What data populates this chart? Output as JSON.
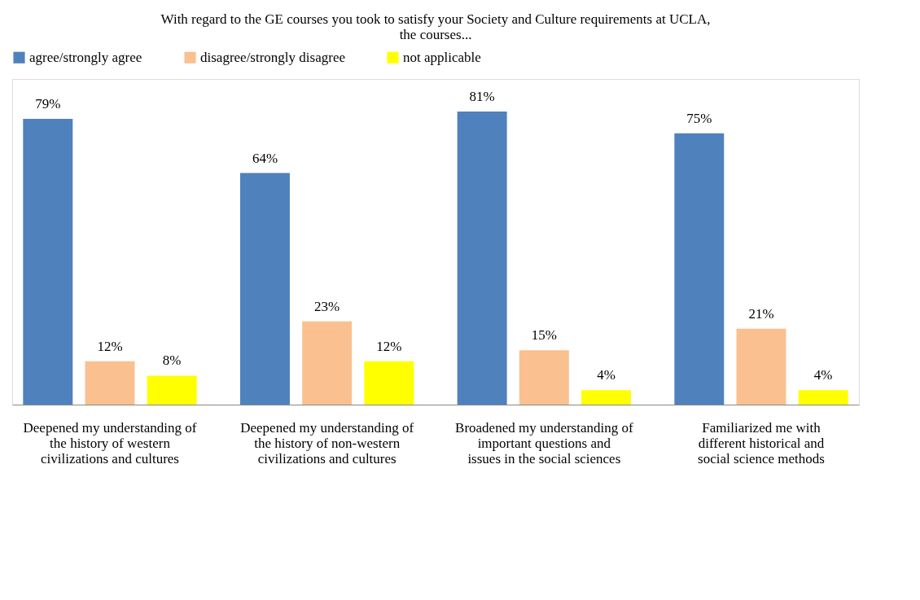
{
  "chart_data": {
    "type": "bar",
    "title": [
      "With regard to the GE courses you took to satisfy your Society and Culture requirements at UCLA,",
      "the courses..."
    ],
    "categories": [
      "Deepened my understanding of the history of western civilizations and cultures",
      "Deepened my understanding of the history of non-western civilizations and cultures",
      "Broadened my understanding of important questions and issues in the social sciences",
      "Familiarized me with different historical and social science methods"
    ],
    "series": [
      {
        "name": "agree/strongly agree",
        "color": "#4f81bd",
        "values": [
          79,
          64,
          81,
          75
        ],
        "value_labels": [
          "79%",
          "64%",
          "81%",
          "75%"
        ]
      },
      {
        "name": "disagree/strongly disagree",
        "color": "#fac090",
        "values": [
          12,
          23,
          15,
          21
        ],
        "value_labels": [
          "12%",
          "23%",
          "15%",
          "21%"
        ]
      },
      {
        "name": "not applicable",
        "color": "#ffff00",
        "values": [
          8,
          12,
          4,
          4
        ],
        "value_labels": [
          "8%",
          "12%",
          "4%",
          "4%"
        ]
      }
    ],
    "legend": "top",
    "grid": false
  }
}
